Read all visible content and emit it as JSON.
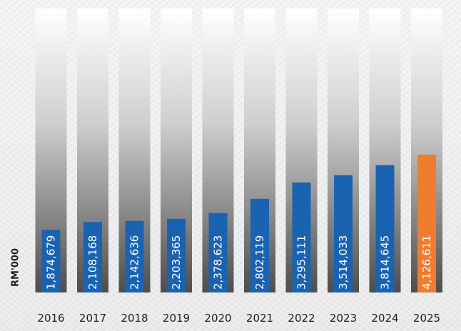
{
  "chart_data": {
    "type": "bar",
    "title": "",
    "xlabel": "",
    "ylabel": "RM'000",
    "categories": [
      "2016",
      "2017",
      "2018",
      "2019",
      "2020",
      "2021",
      "2022",
      "2023",
      "2024",
      "2025"
    ],
    "values": [
      1874679,
      2108168,
      2142636,
      2203365,
      2378623,
      2802119,
      3295111,
      3514033,
      3814645,
      4126611
    ],
    "value_labels": [
      "1,874,679",
      "2,108,168",
      "2,142,636",
      "2,203,365",
      "2,378,623",
      "2,802,119",
      "3,295,111",
      "3,514,033",
      "3,814,645",
      "4,126,611"
    ],
    "ylim": [
      0,
      8500000
    ],
    "grid": false,
    "legend": "none",
    "colors": {
      "bar": "#1a63b0",
      "highlight_bar": "#ee7d2f",
      "track_top": "#ffffff",
      "track_bottom": "#4d4d4d",
      "label_text": "#ffffff",
      "axis_text": "#1f1f1f"
    },
    "highlight_index": 9
  }
}
